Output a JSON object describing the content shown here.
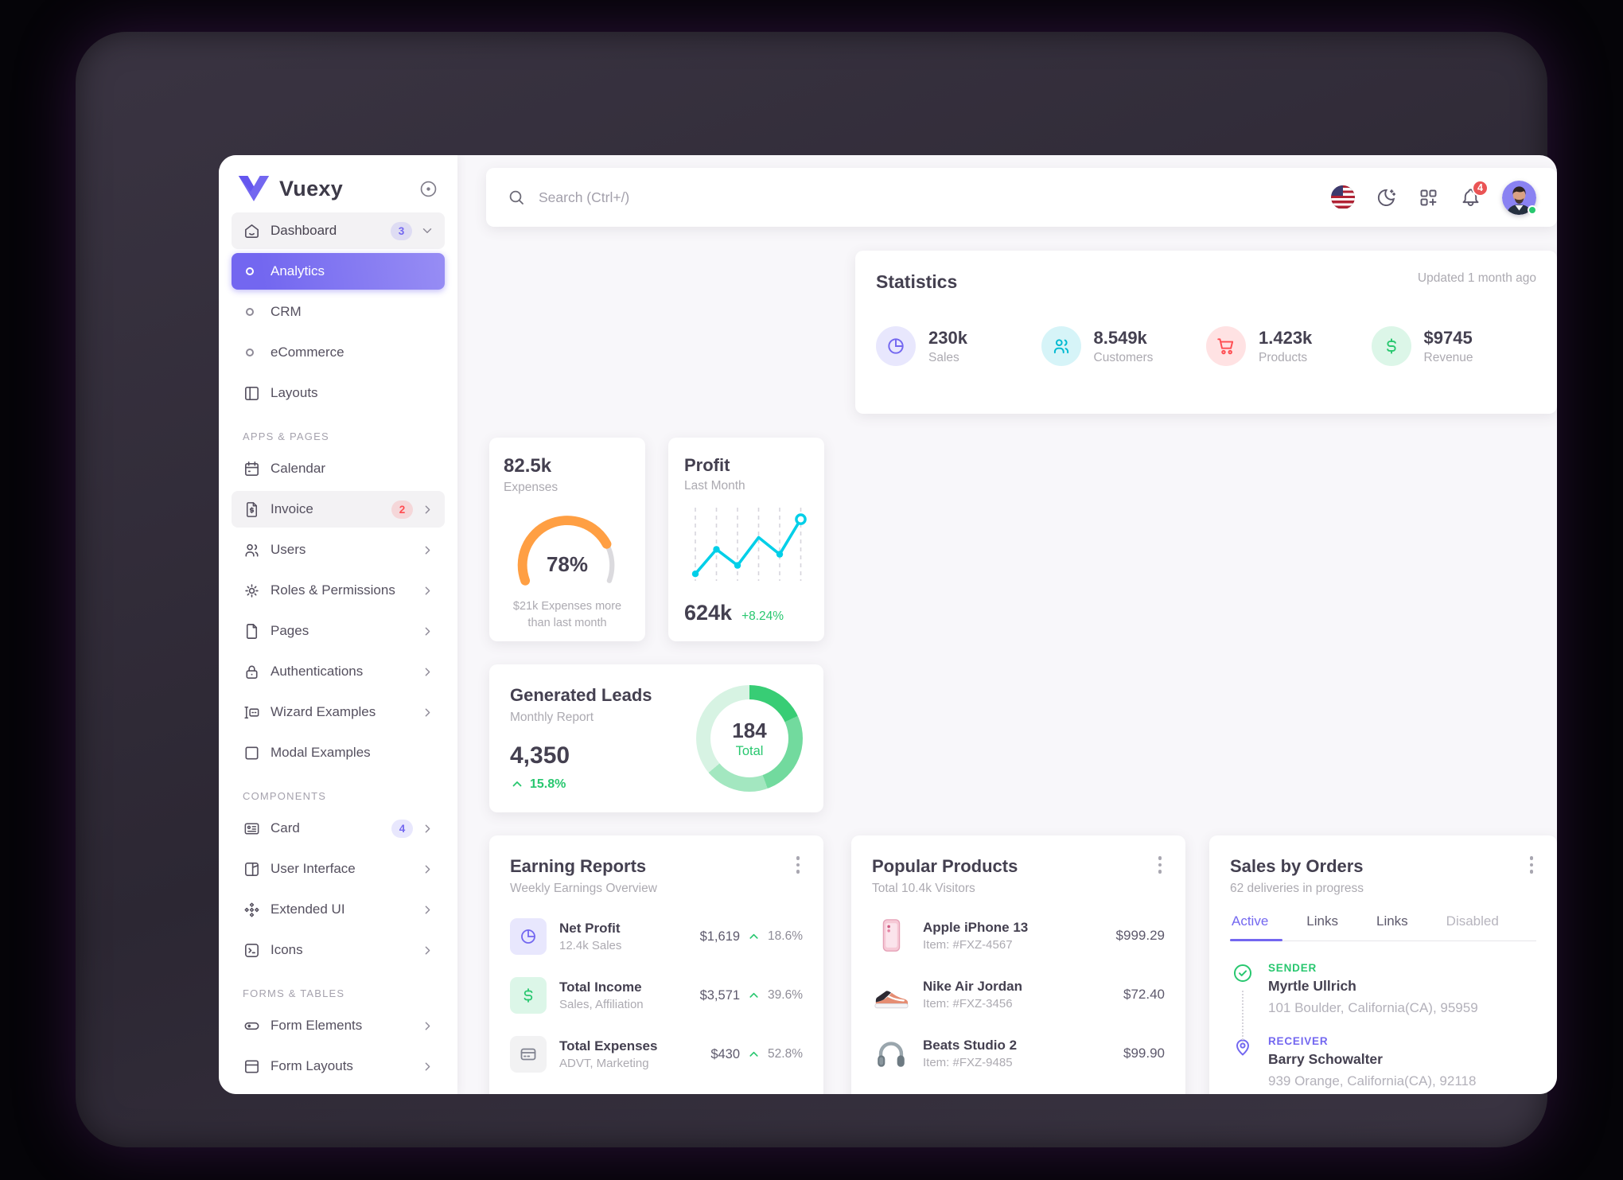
{
  "brand": {
    "name": "Vuexy"
  },
  "topbar": {
    "search_placeholder": "Search (Ctrl+/)",
    "notification_count": "4"
  },
  "sidebar": {
    "sections": [
      {
        "items": [
          {
            "label": "Dashboard",
            "badge": "3"
          },
          {
            "label": "Analytics"
          },
          {
            "label": "CRM"
          },
          {
            "label": "eCommerce"
          },
          {
            "label": "Layouts"
          }
        ]
      },
      {
        "header": "APPS & PAGES",
        "items": [
          {
            "label": "Calendar"
          },
          {
            "label": "Invoice",
            "badge": "2"
          },
          {
            "label": "Users"
          },
          {
            "label": "Roles & Permissions"
          },
          {
            "label": "Pages"
          },
          {
            "label": "Authentications"
          },
          {
            "label": "Wizard Examples"
          },
          {
            "label": "Modal Examples"
          }
        ]
      },
      {
        "header": "COMPONENTS",
        "items": [
          {
            "label": "Card",
            "badge": "4"
          },
          {
            "label": "User Interface"
          },
          {
            "label": "Extended UI"
          },
          {
            "label": "Icons"
          }
        ]
      },
      {
        "header": "FORMS & TABLES",
        "items": [
          {
            "label": "Form Elements"
          },
          {
            "label": "Form Layouts"
          }
        ]
      }
    ]
  },
  "statistics": {
    "title": "Statistics",
    "updated": "Updated 1 month ago",
    "items": [
      {
        "value": "230k",
        "label": "Sales",
        "color": "#7367f0"
      },
      {
        "value": "8.549k",
        "label": "Customers",
        "color": "#00bad1"
      },
      {
        "value": "1.423k",
        "label": "Products",
        "color": "#ff4c51"
      },
      {
        "value": "$9745",
        "label": "Revenue",
        "color": "#28c76f"
      }
    ]
  },
  "expenses_card": {
    "value": "82.5k",
    "label": "Expenses",
    "percent": 78,
    "percent_label": "78%",
    "note_line1": "$21k Expenses more",
    "note_line2": "than last month",
    "gauge_color": "#ff9f43"
  },
  "profit_card": {
    "title": "Profit",
    "subtitle": "Last Month",
    "value": "624k",
    "delta": "+8.24%",
    "line_color": "#00cfe8",
    "series": [
      10,
      45,
      22,
      62,
      38,
      88
    ]
  },
  "leads_card": {
    "title": "Generated Leads",
    "subtitle": "Monthly Report",
    "value": "4,350",
    "delta": "15.8%",
    "total_value": "184",
    "total_label": "Total",
    "segments": [
      {
        "deg": 65,
        "color": "#38cd75"
      },
      {
        "deg": 95,
        "color": "#72da9e"
      },
      {
        "deg": 70,
        "color": "#a3e7c0"
      },
      {
        "deg": 130,
        "color": "#d7f3e3"
      }
    ]
  },
  "earning_reports": {
    "title": "Earning Reports",
    "subtitle": "Weekly Earnings Overview",
    "rows": [
      {
        "title": "Net Profit",
        "subtitle": "12.4k Sales",
        "value": "$1,619",
        "delta": "18.6%"
      },
      {
        "title": "Total Income",
        "subtitle": "Sales, Affiliation",
        "value": "$3,571",
        "delta": "39.6%"
      },
      {
        "title": "Total Expenses",
        "subtitle": "ADVT, Marketing",
        "value": "$430",
        "delta": "52.8%"
      }
    ]
  },
  "popular_products": {
    "title": "Popular Products",
    "subtitle": "Total 10.4k Visitors",
    "rows": [
      {
        "name": "Apple iPhone 13",
        "item": "Item: #FXZ-4567",
        "price": "$999.29"
      },
      {
        "name": "Nike Air Jordan",
        "item": "Item: #FXZ-3456",
        "price": "$72.40"
      },
      {
        "name": "Beats Studio 2",
        "item": "Item: #FXZ-9485",
        "price": "$99.90"
      }
    ]
  },
  "sales_by_orders": {
    "title": "Sales by Orders",
    "subtitle": "62 deliveries in progress",
    "tabs": [
      "Active",
      "Links",
      "Links",
      "Disabled"
    ],
    "active_tab": "Active",
    "sender": {
      "label": "SENDER",
      "name": "Myrtle Ullrich",
      "address": "101 Boulder, California(CA), 95959"
    },
    "receiver": {
      "label": "RECEIVER",
      "name": "Barry Schowalter",
      "address": "939 Orange, California(CA), 92118"
    }
  }
}
